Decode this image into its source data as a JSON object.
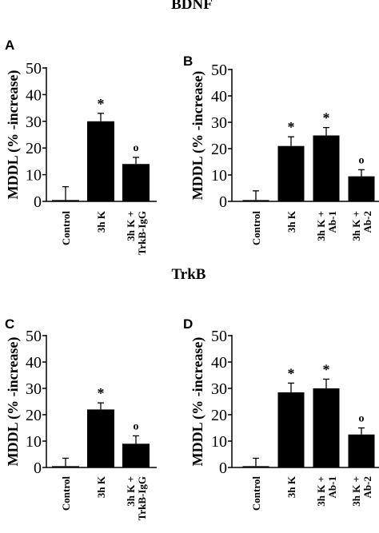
{
  "figure": {
    "section_titles": [
      "BDNF",
      "TrkB"
    ]
  },
  "colors": {
    "bar": "#000000",
    "axis": "#000000",
    "background": "#ffffff"
  },
  "chart_data": [
    {
      "panel": "A",
      "type": "bar",
      "section": "BDNF",
      "ylabel": "MDDL (% -increase)",
      "ylim": [
        0,
        50
      ],
      "yticks": [
        "0",
        "10",
        "20",
        "30",
        "40",
        "50"
      ],
      "categories": [
        "Control",
        "3h K",
        "3h K + TrkB-IgG"
      ],
      "category_lines": [
        [
          "Control"
        ],
        [
          "3h K"
        ],
        [
          "3h K +",
          "TrkB-IgG"
        ]
      ],
      "values": [
        0.5,
        30,
        14
      ],
      "errors": [
        5,
        3,
        2.5
      ],
      "markers": [
        "",
        "*",
        "o"
      ],
      "grid": false
    },
    {
      "panel": "B",
      "type": "bar",
      "section": "BDNF",
      "ylabel": "MDDL (% -increase)",
      "ylim": [
        0,
        50
      ],
      "yticks": [
        "0",
        "10",
        "20",
        "30",
        "40",
        "50"
      ],
      "categories": [
        "Control",
        "3h K",
        "3h K + Ab-1",
        "3h K + Ab-2"
      ],
      "category_lines": [
        [
          "Control"
        ],
        [
          "3h K"
        ],
        [
          "3h K +",
          "Ab-1"
        ],
        [
          "3h K +",
          "Ab-2"
        ]
      ],
      "values": [
        0.5,
        21,
        25,
        9.5
      ],
      "errors": [
        3.5,
        3.5,
        3,
        2.5
      ],
      "markers": [
        "",
        "*",
        "*",
        "o"
      ],
      "grid": false
    },
    {
      "panel": "C",
      "type": "bar",
      "section": "TrkB",
      "ylabel": "MDDL (% -increase)",
      "ylim": [
        0,
        50
      ],
      "yticks": [
        "0",
        "10",
        "20",
        "30",
        "40",
        "50"
      ],
      "categories": [
        "Control",
        "3h K",
        "3h K + TrkB-IgG"
      ],
      "category_lines": [
        [
          "Control"
        ],
        [
          "3h K"
        ],
        [
          "3h K +",
          "TrkB-IgG"
        ]
      ],
      "values": [
        0.5,
        22,
        9
      ],
      "errors": [
        3,
        2.5,
        3
      ],
      "markers": [
        "",
        "*",
        "o"
      ],
      "grid": false
    },
    {
      "panel": "D",
      "type": "bar",
      "section": "TrkB",
      "ylabel": "MDDL (% -increase)",
      "ylim": [
        0,
        50
      ],
      "yticks": [
        "0",
        "10",
        "20",
        "30",
        "40",
        "50"
      ],
      "categories": [
        "Control",
        "3h K",
        "3h K + Ab-1",
        "3h K + Ab-2"
      ],
      "category_lines": [
        [
          "Control"
        ],
        [
          "3h K"
        ],
        [
          "3h K +",
          "Ab-1"
        ],
        [
          "3h K +",
          "Ab-2"
        ]
      ],
      "values": [
        0.5,
        28.5,
        30,
        12.5
      ],
      "errors": [
        3,
        3.5,
        3.5,
        2.5
      ],
      "markers": [
        "",
        "*",
        "*",
        "o"
      ],
      "grid": false
    }
  ]
}
